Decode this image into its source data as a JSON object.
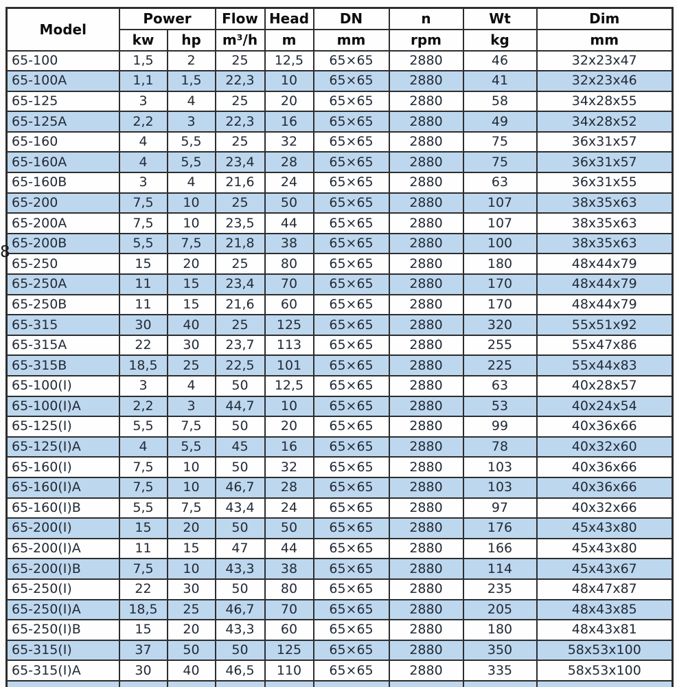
{
  "page": {
    "number": "8"
  },
  "colors": {
    "row_alt": "#bdd7ee",
    "row_base": "#fefefe",
    "border": "#2d2d2d",
    "header_text": "#0d0d0d",
    "body_text": "#222a35",
    "page_bg": "#fcfcfc"
  },
  "table": {
    "header": {
      "model": "Model",
      "power": "Power",
      "kw": "kw",
      "hp": "hp",
      "flow": "Flow",
      "flow_unit": "m³/h",
      "head": "Head",
      "head_unit": "m",
      "dn": "DN",
      "dn_unit": "mm",
      "n": "n",
      "n_unit": "rpm",
      "wt": "Wt",
      "wt_unit": "kg",
      "dim": "Dim",
      "dim_unit": "mm"
    },
    "column_keys": [
      "model",
      "power-kw",
      "power-hp",
      "flow",
      "head",
      "dn",
      "n",
      "wt",
      "dim"
    ],
    "rows": [
      [
        "65-100",
        "1,5",
        "2",
        "25",
        "12,5",
        "65×65",
        "2880",
        "46",
        "32x23x47"
      ],
      [
        "65-100A",
        "1,1",
        "1,5",
        "22,3",
        "10",
        "65×65",
        "2880",
        "41",
        "32x23x46"
      ],
      [
        "65-125",
        "3",
        "4",
        "25",
        "20",
        "65×65",
        "2880",
        "58",
        "34x28x55"
      ],
      [
        "65-125A",
        "2,2",
        "3",
        "22,3",
        "16",
        "65×65",
        "2880",
        "49",
        "34x28x52"
      ],
      [
        "65-160",
        "4",
        "5,5",
        "25",
        "32",
        "65×65",
        "2880",
        "75",
        "36x31x57"
      ],
      [
        "65-160A",
        "4",
        "5,5",
        "23,4",
        "28",
        "65×65",
        "2880",
        "75",
        "36x31x57"
      ],
      [
        "65-160B",
        "3",
        "4",
        "21,6",
        "24",
        "65×65",
        "2880",
        "63",
        "36x31x55"
      ],
      [
        "65-200",
        "7,5",
        "10",
        "25",
        "50",
        "65×65",
        "2880",
        "107",
        "38x35x63"
      ],
      [
        "65-200A",
        "7,5",
        "10",
        "23,5",
        "44",
        "65×65",
        "2880",
        "107",
        "38x35x63"
      ],
      [
        "65-200B",
        "5,5",
        "7,5",
        "21,8",
        "38",
        "65×65",
        "2880",
        "100",
        "38x35x63"
      ],
      [
        "65-250",
        "15",
        "20",
        "25",
        "80",
        "65×65",
        "2880",
        "180",
        "48x44x79"
      ],
      [
        "65-250A",
        "11",
        "15",
        "23,4",
        "70",
        "65×65",
        "2880",
        "170",
        "48x44x79"
      ],
      [
        "65-250B",
        "11",
        "15",
        "21,6",
        "60",
        "65×65",
        "2880",
        "170",
        "48x44x79"
      ],
      [
        "65-315",
        "30",
        "40",
        "25",
        "125",
        "65×65",
        "2880",
        "320",
        "55x51x92"
      ],
      [
        "65-315A",
        "22",
        "30",
        "23,7",
        "113",
        "65×65",
        "2880",
        "255",
        "55x47x86"
      ],
      [
        "65-315B",
        "18,5",
        "25",
        "22,5",
        "101",
        "65×65",
        "2880",
        "225",
        "55x44x83"
      ],
      [
        "65-100(I)",
        "3",
        "4",
        "50",
        "12,5",
        "65×65",
        "2880",
        "63",
        "40x28x57"
      ],
      [
        "65-100(I)A",
        "2,2",
        "3",
        "44,7",
        "10",
        "65×65",
        "2880",
        "53",
        "40x24x54"
      ],
      [
        "65-125(I)",
        "5,5",
        "7,5",
        "50",
        "20",
        "65×65",
        "2880",
        "99",
        "40x36x66"
      ],
      [
        "65-125(I)A",
        "4",
        "5,5",
        "45",
        "16",
        "65×65",
        "2880",
        "78",
        "40x32x60"
      ],
      [
        "65-160(I)",
        "7,5",
        "10",
        "50",
        "32",
        "65×65",
        "2880",
        "103",
        "40x36x66"
      ],
      [
        "65-160(I)A",
        "7,5",
        "10",
        "46,7",
        "28",
        "65×65",
        "2880",
        "103",
        "40x36x66"
      ],
      [
        "65-160(I)B",
        "5,5",
        "7,5",
        "43,4",
        "24",
        "65×65",
        "2880",
        "97",
        "40x32x66"
      ],
      [
        "65-200(I)",
        "15",
        "20",
        "50",
        "50",
        "65×65",
        "2880",
        "176",
        "45x43x80"
      ],
      [
        "65-200(I)A",
        "11",
        "15",
        "47",
        "44",
        "65×65",
        "2880",
        "166",
        "45x43x80"
      ],
      [
        "65-200(I)B",
        "7,5",
        "10",
        "43,3",
        "38",
        "65×65",
        "2880",
        "114",
        "45x43x67"
      ],
      [
        "65-250(I)",
        "22",
        "30",
        "50",
        "80",
        "65×65",
        "2880",
        "235",
        "48x47x87"
      ],
      [
        "65-250(I)A",
        "18,5",
        "25",
        "46,7",
        "70",
        "65×65",
        "2880",
        "205",
        "48x43x85"
      ],
      [
        "65-250(I)B",
        "15",
        "20",
        "43,3",
        "60",
        "65×65",
        "2880",
        "180",
        "48x43x81"
      ],
      [
        "65-315(I)",
        "37",
        "50",
        "50",
        "125",
        "65×65",
        "2880",
        "350",
        "58x53x100"
      ],
      [
        "65-315(I)A",
        "30",
        "40",
        "46,5",
        "110",
        "65×65",
        "2880",
        "335",
        "58x53x100"
      ]
    ],
    "partial_bottom_row": {
      "visible": true,
      "style": "alt"
    }
  }
}
